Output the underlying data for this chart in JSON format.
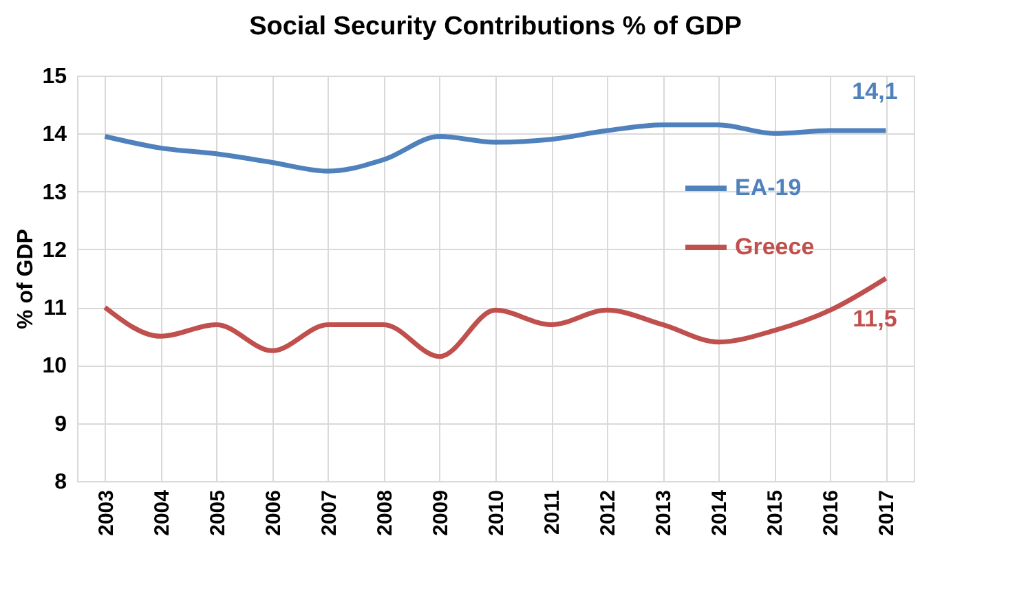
{
  "chart_data": {
    "type": "line",
    "title": "Social Security Contributions % of GDP",
    "ylabel": "% of GDP",
    "categories": [
      "2003",
      "2004",
      "2005",
      "2006",
      "2007",
      "2008",
      "2009",
      "2010",
      "2011",
      "2012",
      "2013",
      "2014",
      "2015",
      "2016",
      "2017"
    ],
    "series": [
      {
        "name": "EA-19",
        "color": "#4f81bd",
        "values": [
          13.95,
          13.75,
          13.65,
          13.5,
          13.35,
          13.55,
          13.95,
          13.85,
          13.9,
          14.05,
          14.15,
          14.15,
          14.0,
          14.05,
          14.05
        ]
      },
      {
        "name": "Greece",
        "color": "#c0504d",
        "values": [
          11.0,
          10.5,
          10.7,
          10.25,
          10.7,
          10.7,
          10.15,
          10.95,
          10.7,
          10.95,
          10.7,
          10.4,
          10.6,
          10.95,
          11.5
        ]
      }
    ],
    "annotations": [
      {
        "text": "14,1",
        "x": "2017",
        "y": 14.05
      },
      {
        "text": "11,5",
        "x": "2017",
        "y": 11.5
      }
    ],
    "ylim": [
      8,
      15
    ],
    "yticks": [
      8,
      9,
      10,
      11,
      12,
      13,
      14,
      15
    ],
    "grid": true,
    "legend": "right",
    "marker": "none",
    "line_style": "solid"
  }
}
